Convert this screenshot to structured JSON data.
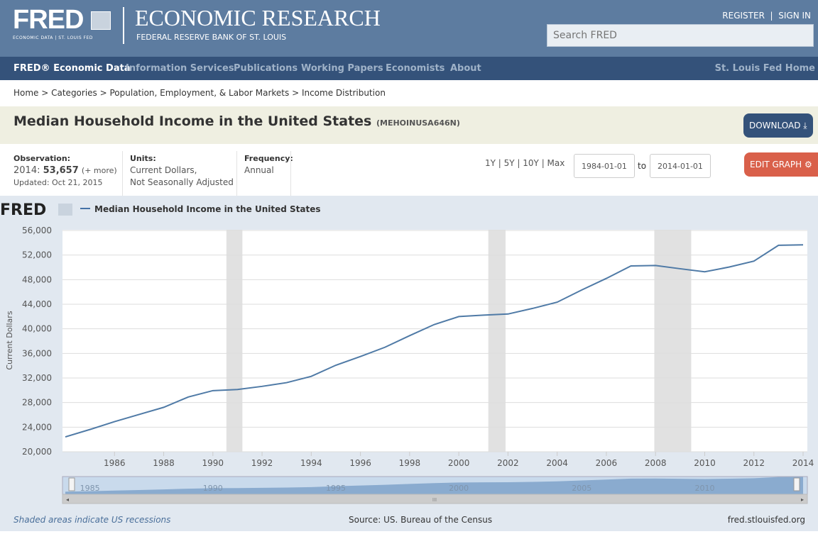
{
  "header": {
    "logo": "FRED",
    "logo_sub": "ECONOMIC DATA | ST. LOUIS FED",
    "org_title": "ECONOMIC RESEARCH",
    "org_sub": "FEDERAL RESERVE BANK OF ST. LOUIS",
    "register": "REGISTER",
    "sign_in": "SIGN IN",
    "search_placeholder": "Search FRED"
  },
  "nav": {
    "items": [
      "FRED® Economic Data",
      "Information Services",
      "Publications",
      "Working Papers",
      "Economists",
      "About"
    ],
    "right": "St. Louis Fed Home"
  },
  "breadcrumb": "Home > Categories > Population, Employment, & Labor Markets > Income Distribution",
  "series": {
    "title": "Median Household Income in the United States",
    "id": "(MEHOINUSA646N)",
    "download": "DOWNLOAD",
    "edit_graph": "EDIT GRAPH"
  },
  "meta": {
    "obs_label": "Observation:",
    "obs_date": "2014:",
    "obs_value": "53,657",
    "obs_more": "(+ more)",
    "updated": "Updated: Oct 21, 2015",
    "units_label": "Units:",
    "units_1": "Current Dollars,",
    "units_2": "Not Seasonally Adjusted",
    "freq_label": "Frequency:",
    "freq": "Annual",
    "range_links": "1Y | 5Y | 10Y | Max",
    "start": "1984-01-01",
    "to": "to",
    "end": "2014-01-01"
  },
  "chart_data": {
    "type": "line",
    "title": "Median Household Income in the United States",
    "logo": "FRED",
    "ylabel": "Current Dollars",
    "xlabel": "",
    "ylim": [
      20000,
      56000
    ],
    "xlim": [
      1984,
      2014
    ],
    "yticks": [
      20000,
      24000,
      28000,
      32000,
      36000,
      40000,
      44000,
      48000,
      52000,
      56000
    ],
    "ytick_labels": [
      "20,000",
      "24,000",
      "28,000",
      "32,000",
      "36,000",
      "40,000",
      "44,000",
      "48,000",
      "52,000",
      "56,000"
    ],
    "xticks": [
      1986,
      1988,
      1990,
      1992,
      1994,
      1996,
      1998,
      2000,
      2002,
      2004,
      2006,
      2008,
      2010,
      2012,
      2014
    ],
    "nav_ticks": [
      1985,
      1990,
      1995,
      2000,
      2005,
      2010
    ],
    "series": [
      {
        "name": "Median Household Income in the United States",
        "color": "#4572a7",
        "x": [
          1984,
          1985,
          1986,
          1987,
          1988,
          1989,
          1990,
          1991,
          1992,
          1993,
          1994,
          1995,
          1996,
          1997,
          1998,
          1999,
          2000,
          2001,
          2002,
          2003,
          2004,
          2005,
          2006,
          2007,
          2008,
          2009,
          2010,
          2011,
          2012,
          2013,
          2014
        ],
        "values": [
          22415,
          23618,
          24897,
          26061,
          27225,
          28906,
          29943,
          30126,
          30636,
          31241,
          32264,
          34076,
          35492,
          37005,
          38885,
          40696,
          41990,
          42228,
          42409,
          43318,
          44334,
          46326,
          48201,
          50233,
          50303,
          49777,
          49276,
          50054,
          51017,
          53585,
          53657
        ]
      }
    ],
    "recessions": [
      [
        1990.55,
        1991.2
      ],
      [
        2001.2,
        2001.9
      ],
      [
        2007.95,
        2009.45
      ]
    ],
    "grid": true
  },
  "footer": {
    "recession_note": "Shaded areas indicate US recessions",
    "source": "Source: US. Bureau of the Census",
    "site": "fred.stlouisfed.org"
  }
}
